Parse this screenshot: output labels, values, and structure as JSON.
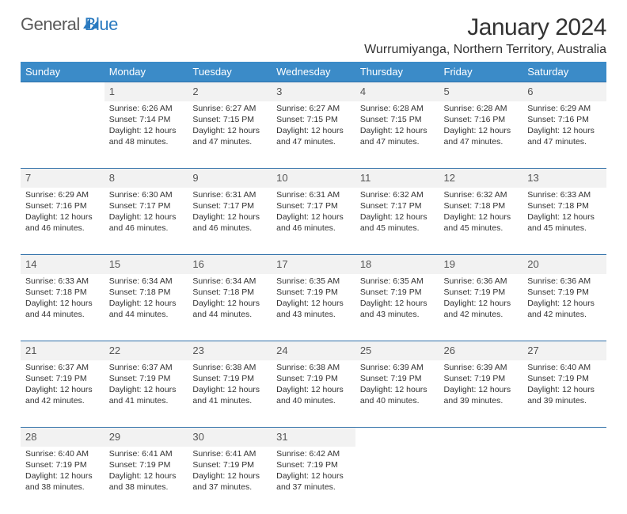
{
  "colors": {
    "header_bg": "#3b8bc8",
    "header_text": "#ffffff",
    "daynum_bg": "#f2f2f2",
    "daynum_border": "#2f6fa8",
    "body_text": "#333333",
    "logo_grey": "#5a5a5a",
    "logo_blue": "#2a7ac0"
  },
  "logo": {
    "part1": "General",
    "part2": "Blue"
  },
  "title": "January 2024",
  "location": "Wurrumiyanga, Northern Territory, Australia",
  "weekdays": [
    "Sunday",
    "Monday",
    "Tuesday",
    "Wednesday",
    "Thursday",
    "Friday",
    "Saturday"
  ],
  "weeks": [
    {
      "nums": [
        "",
        "1",
        "2",
        "3",
        "4",
        "5",
        "6"
      ],
      "cells": [
        null,
        {
          "sunrise": "Sunrise: 6:26 AM",
          "sunset": "Sunset: 7:14 PM",
          "d1": "Daylight: 12 hours",
          "d2": "and 48 minutes."
        },
        {
          "sunrise": "Sunrise: 6:27 AM",
          "sunset": "Sunset: 7:15 PM",
          "d1": "Daylight: 12 hours",
          "d2": "and 47 minutes."
        },
        {
          "sunrise": "Sunrise: 6:27 AM",
          "sunset": "Sunset: 7:15 PM",
          "d1": "Daylight: 12 hours",
          "d2": "and 47 minutes."
        },
        {
          "sunrise": "Sunrise: 6:28 AM",
          "sunset": "Sunset: 7:15 PM",
          "d1": "Daylight: 12 hours",
          "d2": "and 47 minutes."
        },
        {
          "sunrise": "Sunrise: 6:28 AM",
          "sunset": "Sunset: 7:16 PM",
          "d1": "Daylight: 12 hours",
          "d2": "and 47 minutes."
        },
        {
          "sunrise": "Sunrise: 6:29 AM",
          "sunset": "Sunset: 7:16 PM",
          "d1": "Daylight: 12 hours",
          "d2": "and 47 minutes."
        }
      ]
    },
    {
      "nums": [
        "7",
        "8",
        "9",
        "10",
        "11",
        "12",
        "13"
      ],
      "cells": [
        {
          "sunrise": "Sunrise: 6:29 AM",
          "sunset": "Sunset: 7:16 PM",
          "d1": "Daylight: 12 hours",
          "d2": "and 46 minutes."
        },
        {
          "sunrise": "Sunrise: 6:30 AM",
          "sunset": "Sunset: 7:17 PM",
          "d1": "Daylight: 12 hours",
          "d2": "and 46 minutes."
        },
        {
          "sunrise": "Sunrise: 6:31 AM",
          "sunset": "Sunset: 7:17 PM",
          "d1": "Daylight: 12 hours",
          "d2": "and 46 minutes."
        },
        {
          "sunrise": "Sunrise: 6:31 AM",
          "sunset": "Sunset: 7:17 PM",
          "d1": "Daylight: 12 hours",
          "d2": "and 46 minutes."
        },
        {
          "sunrise": "Sunrise: 6:32 AM",
          "sunset": "Sunset: 7:17 PM",
          "d1": "Daylight: 12 hours",
          "d2": "and 45 minutes."
        },
        {
          "sunrise": "Sunrise: 6:32 AM",
          "sunset": "Sunset: 7:18 PM",
          "d1": "Daylight: 12 hours",
          "d2": "and 45 minutes."
        },
        {
          "sunrise": "Sunrise: 6:33 AM",
          "sunset": "Sunset: 7:18 PM",
          "d1": "Daylight: 12 hours",
          "d2": "and 45 minutes."
        }
      ]
    },
    {
      "nums": [
        "14",
        "15",
        "16",
        "17",
        "18",
        "19",
        "20"
      ],
      "cells": [
        {
          "sunrise": "Sunrise: 6:33 AM",
          "sunset": "Sunset: 7:18 PM",
          "d1": "Daylight: 12 hours",
          "d2": "and 44 minutes."
        },
        {
          "sunrise": "Sunrise: 6:34 AM",
          "sunset": "Sunset: 7:18 PM",
          "d1": "Daylight: 12 hours",
          "d2": "and 44 minutes."
        },
        {
          "sunrise": "Sunrise: 6:34 AM",
          "sunset": "Sunset: 7:18 PM",
          "d1": "Daylight: 12 hours",
          "d2": "and 44 minutes."
        },
        {
          "sunrise": "Sunrise: 6:35 AM",
          "sunset": "Sunset: 7:19 PM",
          "d1": "Daylight: 12 hours",
          "d2": "and 43 minutes."
        },
        {
          "sunrise": "Sunrise: 6:35 AM",
          "sunset": "Sunset: 7:19 PM",
          "d1": "Daylight: 12 hours",
          "d2": "and 43 minutes."
        },
        {
          "sunrise": "Sunrise: 6:36 AM",
          "sunset": "Sunset: 7:19 PM",
          "d1": "Daylight: 12 hours",
          "d2": "and 42 minutes."
        },
        {
          "sunrise": "Sunrise: 6:36 AM",
          "sunset": "Sunset: 7:19 PM",
          "d1": "Daylight: 12 hours",
          "d2": "and 42 minutes."
        }
      ]
    },
    {
      "nums": [
        "21",
        "22",
        "23",
        "24",
        "25",
        "26",
        "27"
      ],
      "cells": [
        {
          "sunrise": "Sunrise: 6:37 AM",
          "sunset": "Sunset: 7:19 PM",
          "d1": "Daylight: 12 hours",
          "d2": "and 42 minutes."
        },
        {
          "sunrise": "Sunrise: 6:37 AM",
          "sunset": "Sunset: 7:19 PM",
          "d1": "Daylight: 12 hours",
          "d2": "and 41 minutes."
        },
        {
          "sunrise": "Sunrise: 6:38 AM",
          "sunset": "Sunset: 7:19 PM",
          "d1": "Daylight: 12 hours",
          "d2": "and 41 minutes."
        },
        {
          "sunrise": "Sunrise: 6:38 AM",
          "sunset": "Sunset: 7:19 PM",
          "d1": "Daylight: 12 hours",
          "d2": "and 40 minutes."
        },
        {
          "sunrise": "Sunrise: 6:39 AM",
          "sunset": "Sunset: 7:19 PM",
          "d1": "Daylight: 12 hours",
          "d2": "and 40 minutes."
        },
        {
          "sunrise": "Sunrise: 6:39 AM",
          "sunset": "Sunset: 7:19 PM",
          "d1": "Daylight: 12 hours",
          "d2": "and 39 minutes."
        },
        {
          "sunrise": "Sunrise: 6:40 AM",
          "sunset": "Sunset: 7:19 PM",
          "d1": "Daylight: 12 hours",
          "d2": "and 39 minutes."
        }
      ]
    },
    {
      "nums": [
        "28",
        "29",
        "30",
        "31",
        "",
        "",
        ""
      ],
      "cells": [
        {
          "sunrise": "Sunrise: 6:40 AM",
          "sunset": "Sunset: 7:19 PM",
          "d1": "Daylight: 12 hours",
          "d2": "and 38 minutes."
        },
        {
          "sunrise": "Sunrise: 6:41 AM",
          "sunset": "Sunset: 7:19 PM",
          "d1": "Daylight: 12 hours",
          "d2": "and 38 minutes."
        },
        {
          "sunrise": "Sunrise: 6:41 AM",
          "sunset": "Sunset: 7:19 PM",
          "d1": "Daylight: 12 hours",
          "d2": "and 37 minutes."
        },
        {
          "sunrise": "Sunrise: 6:42 AM",
          "sunset": "Sunset: 7:19 PM",
          "d1": "Daylight: 12 hours",
          "d2": "and 37 minutes."
        },
        null,
        null,
        null
      ]
    }
  ]
}
